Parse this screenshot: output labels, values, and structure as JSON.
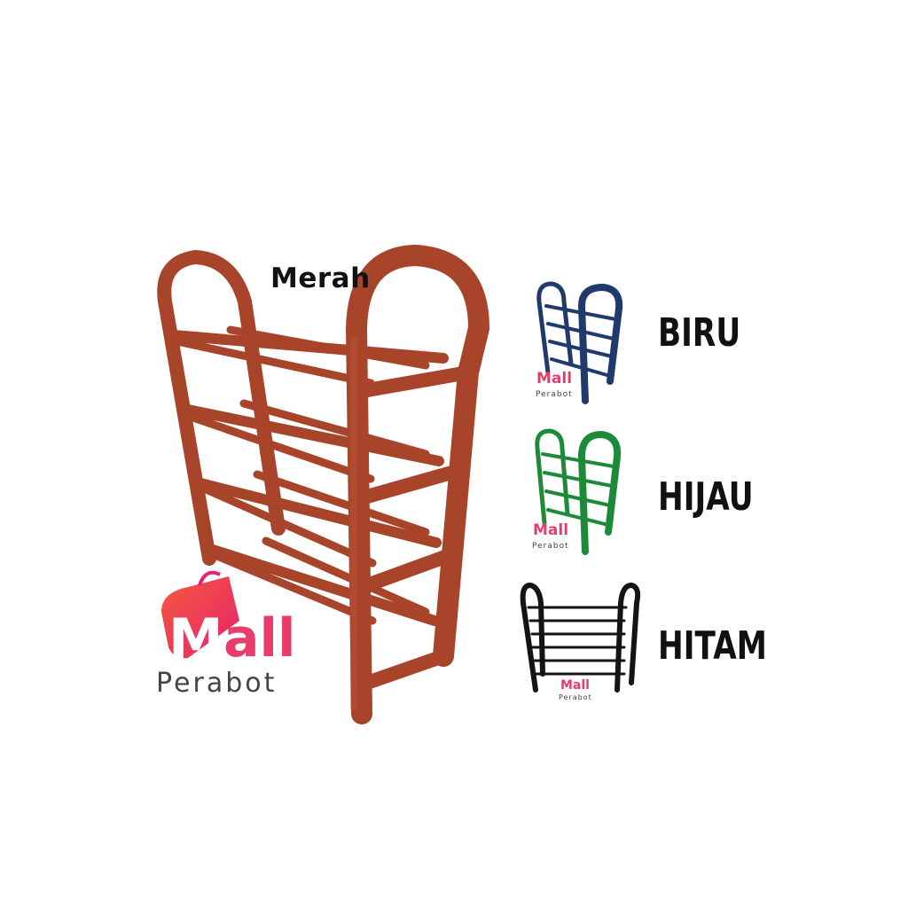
{
  "main_product": {
    "color_label": "Merah",
    "color": "#b24a2c"
  },
  "watermark": {
    "brand": "Mall",
    "sub": "Perabot",
    "accent": "#ea3c6a"
  },
  "variants": [
    {
      "label": "BIRU",
      "color": "#1f3a6b"
    },
    {
      "label": "HIJAU",
      "color": "#1d8a3a"
    },
    {
      "label": "HITAM",
      "color": "#141414"
    }
  ]
}
